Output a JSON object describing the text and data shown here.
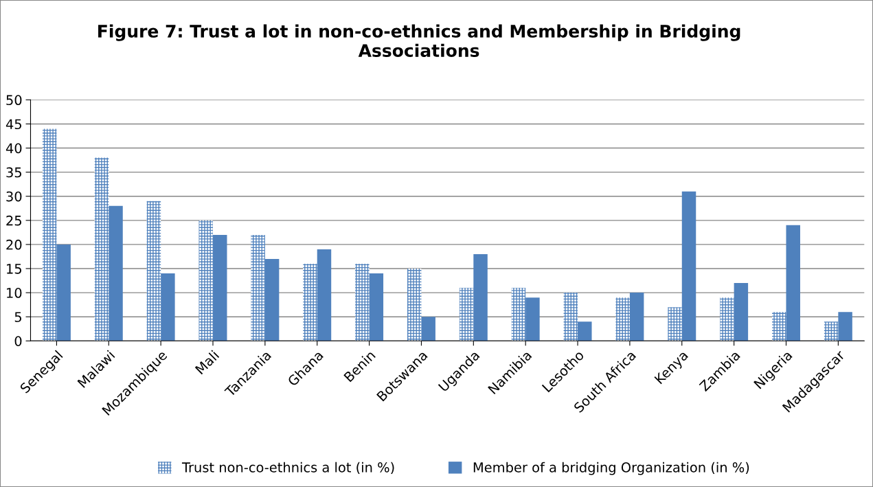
{
  "chart_data": {
    "type": "bar",
    "title": "Figure 7: Trust a lot in non-co-ethnics and Membership in Bridging\nAssociations",
    "categories": [
      "Senegal",
      "Malawi",
      "Mozambique",
      "Mali",
      "Tanzania",
      "Ghana",
      "Benin",
      "Botswana",
      "Uganda",
      "Namibia",
      "Lesotho",
      "South Africa",
      "Kenya",
      "Zambia",
      "Nigeria",
      "Madagascar"
    ],
    "series": [
      {
        "name": "Trust non-co-ethnics a lot (in %)",
        "color": "#4f81bd",
        "values": [
          44,
          38,
          29,
          25,
          22,
          16,
          16,
          15,
          11,
          11,
          10,
          9,
          7,
          9,
          6,
          4
        ]
      },
      {
        "name": "Member of a bridging Organization (in %)",
        "color": "#4f81bd",
        "values": [
          20,
          28,
          14,
          22,
          17,
          19,
          14,
          5,
          18,
          9,
          4,
          10,
          31,
          12,
          24,
          6
        ]
      }
    ],
    "ylim": [
      0,
      50
    ],
    "yticks": [
      0,
      5,
      10,
      15,
      20,
      25,
      30,
      35,
      40,
      45,
      50
    ],
    "grid": "y",
    "legend": "bottom"
  }
}
